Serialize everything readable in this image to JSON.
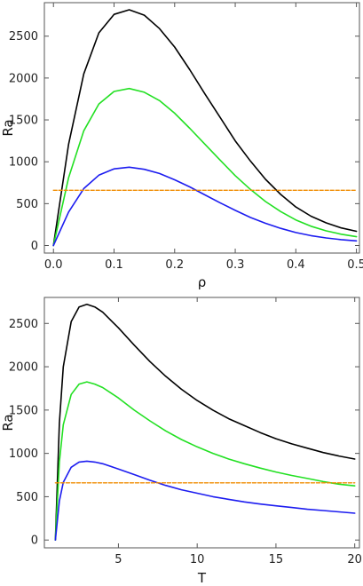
{
  "colors": {
    "black": "#000000",
    "green": "#22e022",
    "blue": "#1c1cf0",
    "orange": "#f08c00"
  },
  "chart_data": [
    {
      "type": "line",
      "xlabel": "ρ",
      "ylabel": "Ra",
      "xlim": [
        -0.015,
        0.505
      ],
      "ylim": [
        -90,
        2900
      ],
      "xticks": [
        0.0,
        0.1,
        0.2,
        0.3,
        0.4,
        0.5
      ],
      "xtick_labels": [
        "0.0",
        "0.1",
        "0.2",
        "0.3",
        "0.4",
        "0.5"
      ],
      "yticks": [
        0,
        500,
        1000,
        1500,
        2000,
        2500
      ],
      "ytick_labels": [
        "0",
        "500",
        "1000",
        "1500",
        "2000",
        "2500"
      ],
      "grid": false,
      "x": [
        0.0,
        0.025,
        0.05,
        0.075,
        0.1,
        0.125,
        0.15,
        0.175,
        0.2,
        0.225,
        0.25,
        0.275,
        0.3,
        0.325,
        0.35,
        0.375,
        0.4,
        0.425,
        0.45,
        0.475,
        0.5
      ],
      "series": [
        {
          "color_key": "black",
          "style": "solid",
          "values": [
            0,
            1210,
            2050,
            2540,
            2760,
            2815,
            2750,
            2590,
            2370,
            2100,
            1810,
            1530,
            1250,
            1010,
            790,
            610,
            460,
            350,
            270,
            210,
            170
          ]
        },
        {
          "color_key": "green",
          "style": "solid",
          "values": [
            0,
            810,
            1370,
            1690,
            1840,
            1875,
            1830,
            1730,
            1580,
            1400,
            1210,
            1020,
            835,
            670,
            525,
            405,
            305,
            230,
            175,
            135,
            105
          ]
        },
        {
          "color_key": "blue",
          "style": "solid",
          "values": [
            0,
            400,
            680,
            840,
            915,
            935,
            910,
            860,
            785,
            700,
            605,
            510,
            420,
            335,
            265,
            205,
            155,
            118,
            90,
            70,
            55
          ]
        },
        {
          "color_key": "orange",
          "style": "dashed",
          "values": [
            660,
            660,
            660,
            660,
            660,
            660,
            660,
            660,
            660,
            660,
            660,
            660,
            660,
            660,
            660,
            660,
            660,
            660,
            660,
            660,
            660
          ]
        }
      ]
    },
    {
      "type": "line",
      "xlabel": "T",
      "ylabel": "Ra",
      "xlim": [
        0.3,
        20.3
      ],
      "ylim": [
        -90,
        2800
      ],
      "xticks": [
        5,
        10,
        15,
        20
      ],
      "xtick_labels": [
        "5",
        "10",
        "15",
        "20"
      ],
      "yticks": [
        0,
        500,
        1000,
        1500,
        2000,
        2500
      ],
      "ytick_labels": [
        "0",
        "500",
        "1000",
        "1500",
        "2000",
        "2500"
      ],
      "grid": false,
      "x": [
        1.0,
        1.25,
        1.5,
        2.0,
        2.5,
        3.0,
        3.5,
        4.0,
        5.0,
        6.0,
        7.0,
        8.0,
        9.0,
        10.0,
        11.0,
        12.0,
        13.0,
        14.0,
        15.0,
        16.0,
        17.0,
        18.0,
        19.0,
        20.0
      ],
      "series": [
        {
          "color_key": "black",
          "style": "solid",
          "values": [
            0,
            1350,
            2000,
            2520,
            2690,
            2720,
            2690,
            2630,
            2450,
            2250,
            2060,
            1890,
            1740,
            1610,
            1500,
            1400,
            1320,
            1240,
            1170,
            1110,
            1060,
            1010,
            970,
            935
          ]
        },
        {
          "color_key": "green",
          "style": "solid",
          "values": [
            0,
            900,
            1330,
            1680,
            1800,
            1825,
            1800,
            1760,
            1640,
            1500,
            1375,
            1260,
            1160,
            1075,
            1000,
            935,
            880,
            830,
            785,
            745,
            710,
            675,
            645,
            625
          ]
        },
        {
          "color_key": "blue",
          "style": "solid",
          "values": [
            0,
            450,
            665,
            840,
            900,
            910,
            900,
            880,
            820,
            755,
            690,
            630,
            580,
            540,
            500,
            470,
            440,
            415,
            395,
            375,
            355,
            340,
            325,
            310
          ]
        },
        {
          "color_key": "orange",
          "style": "dashed",
          "values": [
            660,
            660,
            660,
            660,
            660,
            660,
            660,
            660,
            660,
            660,
            660,
            660,
            660,
            660,
            660,
            660,
            660,
            660,
            660,
            660,
            660,
            660,
            660,
            660
          ]
        }
      ]
    }
  ]
}
